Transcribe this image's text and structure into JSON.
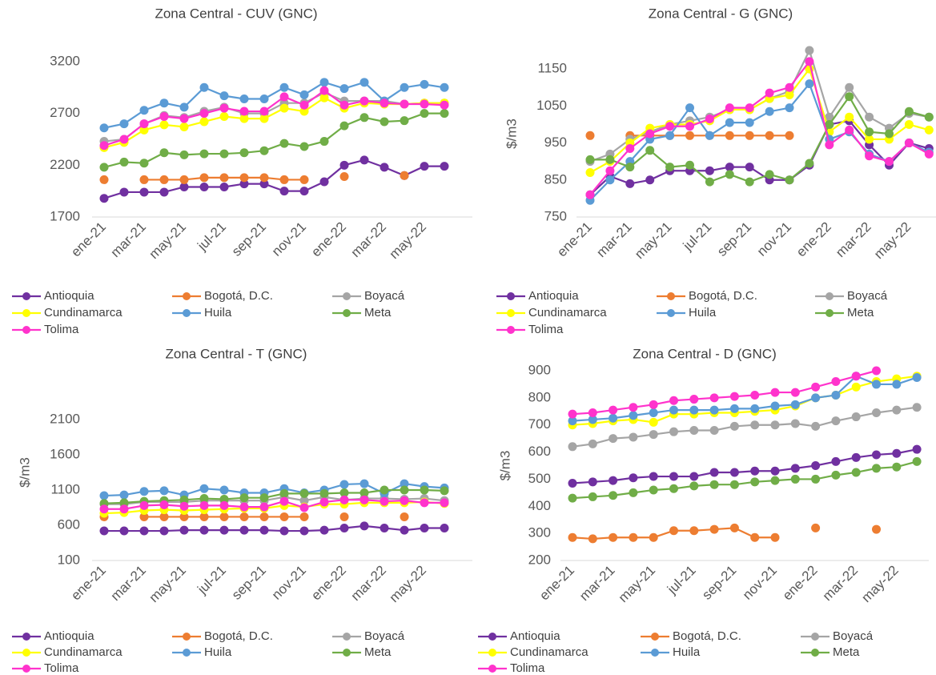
{
  "chart_data": [
    {
      "type": "line",
      "title": "Zona Central - CUV (GNC)",
      "categories": [
        "ene-21",
        null,
        "mar-21",
        null,
        "may-21",
        null,
        "jul-21",
        null,
        "sep-21",
        null,
        "nov-21",
        null,
        "ene-22",
        null,
        "mar-22",
        null,
        "may-22",
        null
      ],
      "ylim": [
        1700,
        3300
      ],
      "yticks": [
        1700,
        2200,
        2700,
        3200
      ],
      "series": [
        {
          "name": "Antioquia",
          "color": "#7030a0",
          "values": [
            1880,
            1940,
            1940,
            1940,
            1990,
            1990,
            1990,
            2020,
            2020,
            1950,
            1950,
            2040,
            2200,
            2250,
            2180,
            2100,
            2190,
            2190
          ]
        },
        {
          "name": "Bogotá, D.C.",
          "color": "#ed7d31",
          "values": [
            2060,
            null,
            2060,
            2060,
            2060,
            2080,
            2080,
            2080,
            2080,
            2060,
            2060,
            null,
            2090,
            null,
            null,
            2100,
            null,
            null
          ]
        },
        {
          "name": "Boyacá",
          "color": "#a5a5a5",
          "values": [
            2430,
            2450,
            2600,
            2680,
            2660,
            2720,
            2760,
            2700,
            2700,
            2800,
            2800,
            2900,
            2820,
            2820,
            2820,
            2790,
            2800,
            2800
          ]
        },
        {
          "name": "Cundinamarca",
          "color": "#ffff00",
          "values": [
            2370,
            2420,
            2540,
            2590,
            2570,
            2620,
            2670,
            2650,
            2650,
            2750,
            2720,
            2850,
            2750,
            2800,
            2790,
            2790,
            2800,
            2800
          ]
        },
        {
          "name": "Huila",
          "color": "#5b9bd5",
          "values": [
            2560,
            2600,
            2730,
            2800,
            2760,
            2950,
            2870,
            2840,
            2840,
            2950,
            2880,
            3000,
            2940,
            3000,
            2820,
            2950,
            2980,
            2950
          ]
        },
        {
          "name": "Meta",
          "color": "#70ad47",
          "values": [
            2180,
            2230,
            2220,
            2320,
            2300,
            2310,
            2310,
            2320,
            2340,
            2410,
            2380,
            2430,
            2580,
            2660,
            2620,
            2630,
            2700,
            2700
          ]
        },
        {
          "name": "Tolima",
          "color": "#ff33cc",
          "values": [
            2390,
            2450,
            2600,
            2670,
            2650,
            2700,
            2750,
            2720,
            2720,
            2860,
            2780,
            2920,
            2780,
            2820,
            2800,
            2790,
            2790,
            2780
          ]
        }
      ]
    },
    {
      "type": "line",
      "title": "Zona Central - G (GNC)",
      "y_label": "$/m3",
      "categories": [
        "ene-21",
        null,
        "mar-21",
        null,
        "may-21",
        null,
        "jul-21",
        null,
        "sep-21",
        null,
        "nov-21",
        null,
        "ene-22",
        null,
        "mar-22",
        null,
        "may-22",
        null
      ],
      "ylim": [
        750,
        1200
      ],
      "yticks": [
        750,
        850,
        950,
        1050,
        1150
      ],
      "series": [
        {
          "name": "Antioquia",
          "color": "#7030a0",
          "values": [
            810,
            860,
            840,
            850,
            875,
            875,
            875,
            885,
            885,
            850,
            850,
            890,
            1000,
            1010,
            945,
            890,
            950,
            935
          ]
        },
        {
          "name": "Bogotá, D.C.",
          "color": "#ed7d31",
          "values": [
            970,
            null,
            970,
            970,
            970,
            970,
            970,
            970,
            970,
            970,
            970,
            null,
            null,
            null,
            null,
            null,
            null,
            null
          ]
        },
        {
          "name": "Boyacá",
          "color": "#a5a5a5",
          "values": [
            900,
            920,
            960,
            980,
            1000,
            1010,
            1020,
            1040,
            1040,
            1070,
            1090,
            1200,
            1020,
            1100,
            1020,
            990,
            1030,
            1020
          ]
        },
        {
          "name": "Cundinamarca",
          "color": "#ffff00",
          "values": [
            870,
            900,
            950,
            990,
            1000,
            1000,
            1010,
            1040,
            1040,
            1070,
            1080,
            1150,
            980,
            1020,
            960,
            960,
            1000,
            985
          ]
        },
        {
          "name": "Huila",
          "color": "#5b9bd5",
          "values": [
            795,
            850,
            900,
            960,
            970,
            1045,
            970,
            1005,
            1005,
            1035,
            1045,
            1110,
            960,
            980,
            920,
            900,
            950,
            925
          ]
        },
        {
          "name": "Meta",
          "color": "#70ad47",
          "values": [
            905,
            905,
            885,
            930,
            885,
            890,
            845,
            865,
            845,
            865,
            850,
            895,
            1000,
            1075,
            980,
            975,
            1035,
            1020
          ]
        },
        {
          "name": "Tolima",
          "color": "#ff33cc",
          "values": [
            810,
            875,
            935,
            975,
            995,
            995,
            1015,
            1045,
            1045,
            1085,
            1100,
            1170,
            945,
            985,
            915,
            900,
            950,
            920
          ]
        }
      ]
    },
    {
      "type": "line",
      "title": "Zona Central - T (GNC)",
      "y_label": "$/m3",
      "categories": [
        "ene-21",
        null,
        "mar-21",
        null,
        "may-21",
        null,
        "jul-21",
        null,
        "sep-21",
        null,
        "nov-21",
        null,
        "ene-22",
        null,
        "mar-22",
        null,
        "may-22",
        null
      ],
      "ylim": [
        100,
        2600
      ],
      "yticks": [
        100,
        600,
        1100,
        1600,
        2100
      ],
      "series": [
        {
          "name": "Antioquia",
          "color": "#7030a0",
          "values": [
            520,
            520,
            520,
            520,
            530,
            530,
            530,
            530,
            530,
            520,
            520,
            530,
            560,
            590,
            560,
            530,
            560,
            560
          ]
        },
        {
          "name": "Bogotá, D.C.",
          "color": "#ed7d31",
          "values": [
            720,
            null,
            720,
            720,
            720,
            720,
            720,
            720,
            720,
            720,
            720,
            null,
            720,
            null,
            null,
            720,
            null,
            null
          ]
        },
        {
          "name": "Boyacá",
          "color": "#a5a5a5",
          "values": [
            900,
            900,
            930,
            930,
            930,
            950,
            950,
            950,
            950,
            1000,
            950,
            1000,
            960,
            980,
            980,
            970,
            980,
            950
          ]
        },
        {
          "name": "Cundinamarca",
          "color": "#ffff00",
          "values": [
            770,
            780,
            810,
            820,
            810,
            820,
            830,
            840,
            840,
            880,
            860,
            900,
            900,
            920,
            920,
            920,
            930,
            910
          ]
        },
        {
          "name": "Huila",
          "color": "#5b9bd5",
          "values": [
            1020,
            1030,
            1080,
            1090,
            1030,
            1120,
            1100,
            1060,
            1060,
            1120,
            1060,
            1100,
            1180,
            1190,
            1050,
            1190,
            1150,
            1130
          ]
        },
        {
          "name": "Meta",
          "color": "#70ad47",
          "values": [
            910,
            920,
            940,
            950,
            960,
            980,
            970,
            990,
            990,
            1050,
            1050,
            1050,
            1060,
            1060,
            1100,
            1100,
            1100,
            1090
          ]
        },
        {
          "name": "Tolima",
          "color": "#ff33cc",
          "values": [
            830,
            830,
            880,
            890,
            870,
            880,
            880,
            860,
            860,
            940,
            850,
            930,
            960,
            960,
            940,
            950,
            920,
            920
          ]
        }
      ]
    },
    {
      "type": "line",
      "title": "Zona Central - D (GNC)",
      "y_label": "$/m3",
      "categories": [
        "ene-21",
        null,
        "mar-21",
        null,
        "may-21",
        null,
        "jul-21",
        null,
        "sep-21",
        null,
        "nov-21",
        null,
        "ene-22",
        null,
        "mar-22",
        null,
        "may-22",
        null
      ],
      "ylim": [
        200,
        900
      ],
      "yticks": [
        200,
        300,
        400,
        500,
        600,
        700,
        800,
        900
      ],
      "series": [
        {
          "name": "Antioquia",
          "color": "#7030a0",
          "values": [
            485,
            490,
            495,
            505,
            510,
            510,
            510,
            525,
            525,
            530,
            530,
            540,
            550,
            565,
            580,
            590,
            595,
            610
          ]
        },
        {
          "name": "Bogotá, D.C.",
          "color": "#ed7d31",
          "values": [
            285,
            280,
            285,
            285,
            285,
            310,
            310,
            315,
            320,
            285,
            285,
            null,
            320,
            null,
            null,
            315,
            null,
            null
          ]
        },
        {
          "name": "Boyacá",
          "color": "#a5a5a5",
          "values": [
            620,
            630,
            650,
            655,
            665,
            675,
            680,
            680,
            695,
            700,
            700,
            705,
            695,
            715,
            730,
            745,
            755,
            765
          ]
        },
        {
          "name": "Cundinamarca",
          "color": "#ffff00",
          "values": [
            700,
            705,
            715,
            720,
            710,
            740,
            740,
            745,
            745,
            750,
            755,
            770,
            800,
            810,
            840,
            860,
            870,
            880
          ]
        },
        {
          "name": "Huila",
          "color": "#5b9bd5",
          "values": [
            715,
            720,
            725,
            735,
            745,
            755,
            755,
            755,
            760,
            760,
            770,
            775,
            800,
            810,
            880,
            850,
            850,
            875
          ]
        },
        {
          "name": "Meta",
          "color": "#70ad47",
          "values": [
            430,
            435,
            440,
            450,
            460,
            465,
            475,
            480,
            480,
            490,
            495,
            500,
            500,
            515,
            525,
            540,
            545,
            565
          ]
        },
        {
          "name": "Tolima",
          "color": "#ff33cc",
          "values": [
            740,
            745,
            755,
            765,
            775,
            790,
            795,
            800,
            805,
            810,
            820,
            820,
            840,
            860,
            880,
            900,
            null,
            null
          ]
        }
      ]
    }
  ]
}
